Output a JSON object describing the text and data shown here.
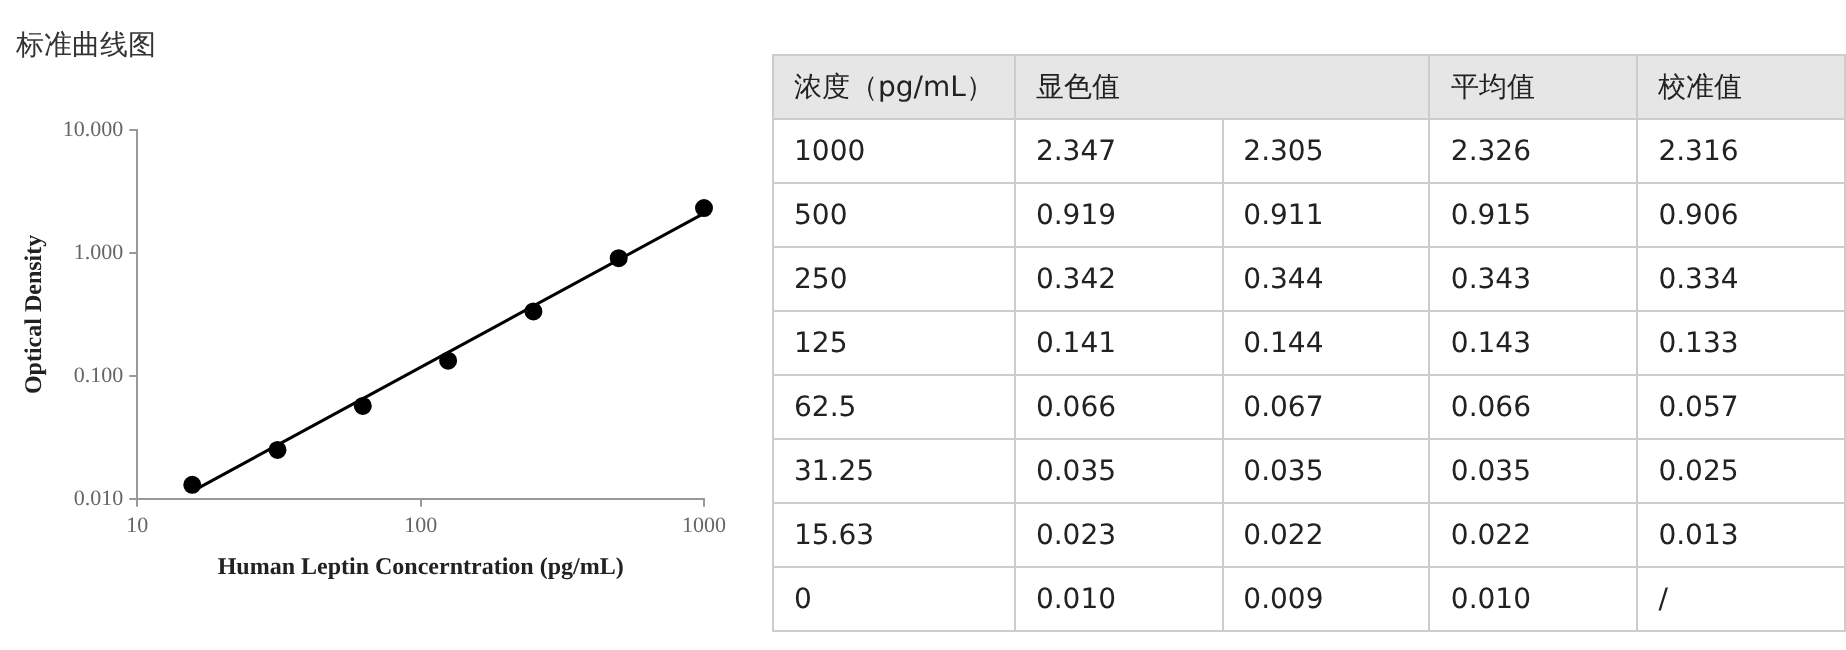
{
  "chart_data": [
    {
      "type": "scatter",
      "title": "标准曲线图",
      "xlabel": "Human Leptin Concerntration (pg/mL)",
      "ylabel": "Optical Density",
      "log": "xy",
      "grid": false,
      "legend": false,
      "marker": "circle",
      "x": [
        15.63,
        31.25,
        62.5,
        125,
        250,
        500,
        1000
      ],
      "series": [
        {
          "color": "#000000",
          "values": [
            0.013,
            0.025,
            0.057,
            0.133,
            0.334,
            0.906,
            2.316
          ]
        },
        {
          "type": "line",
          "marker": "none",
          "color": "#000000",
          "x": [
            15.63,
            1000
          ],
          "values": [
            0.0115,
            2.1
          ]
        }
      ],
      "xlim": [
        10,
        1000
      ],
      "xticks": [
        10,
        100,
        1000
      ],
      "ylim": [
        0.01,
        10
      ],
      "yticks": [
        {
          "value": 0.01,
          "label": "0.010"
        },
        {
          "value": 0.1,
          "label": "0.100"
        },
        {
          "value": 1,
          "label": "1.000"
        },
        {
          "value": 10,
          "label": "10.000"
        }
      ]
    },
    {
      "type": "other",
      "xlabel": "浓度（pg/mL）",
      "categories": [
        "1000",
        "500",
        "250",
        "125",
        "62.5",
        "31.25",
        "15.63",
        "0"
      ],
      "data_labels": true,
      "series": [
        {
          "name": "显色值",
          "values": [
            2.347,
            0.919,
            0.342,
            0.141,
            0.066,
            0.035,
            0.023,
            0.01
          ],
          "value_labels": [
            "2.347",
            "0.919",
            "0.342",
            "0.141",
            "0.066",
            "0.035",
            "0.023",
            "0.010"
          ]
        },
        {
          "values": [
            2.305,
            0.911,
            0.344,
            0.144,
            0.067,
            0.035,
            0.022,
            0.009
          ],
          "value_labels": [
            "2.305",
            "0.911",
            "0.344",
            "0.144",
            "0.067",
            "0.035",
            "0.022",
            "0.009"
          ]
        },
        {
          "name": "平均值",
          "values": [
            2.326,
            0.915,
            0.343,
            0.143,
            0.066,
            0.035,
            0.022,
            0.01
          ],
          "value_labels": [
            "2.326",
            "0.915",
            "0.343",
            "0.143",
            "0.066",
            "0.035",
            "0.022",
            "0.010"
          ]
        },
        {
          "name": "校准值",
          "values": [
            2.316,
            0.906,
            0.334,
            0.133,
            0.057,
            0.025,
            0.013,
            null
          ],
          "value_labels": [
            "2.316",
            "0.906",
            "0.334",
            "0.133",
            "0.057",
            "0.025",
            "0.013",
            "/"
          ]
        }
      ]
    }
  ]
}
